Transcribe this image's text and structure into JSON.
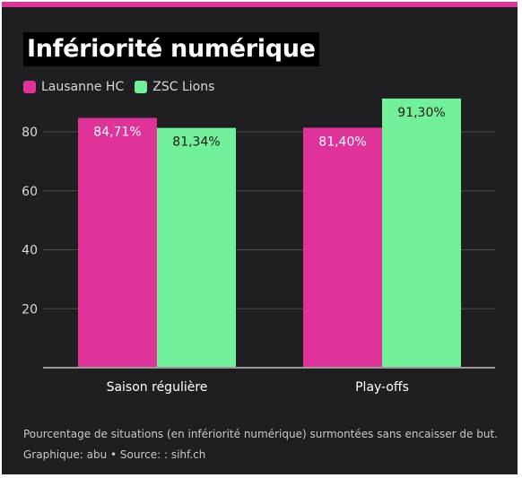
{
  "colors": {
    "series_1": "#e0339a",
    "series_2": "#72f09a",
    "background": "#1f1f21",
    "accent_bar": "#e0339a"
  },
  "header": {
    "title": "Infériorité numérique"
  },
  "chart_data": {
    "type": "bar",
    "categories": [
      "Saison régulière",
      "Play-offs"
    ],
    "series": [
      {
        "name": "Lausanne HC",
        "values": [
          84.71,
          81.4
        ],
        "labels": [
          "84,71%",
          "81,40%"
        ],
        "color": "#e0339a"
      },
      {
        "name": "ZSC Lions",
        "values": [
          81.34,
          91.3
        ],
        "labels": [
          "81,34%",
          "91,30%"
        ],
        "color": "#72f09a"
      }
    ],
    "yticks": [
      20,
      40,
      60,
      80
    ],
    "ylim": [
      0,
      100
    ],
    "grid": true,
    "legend": "top-left"
  },
  "footer": {
    "note": "Pourcentage de situations (en infériorité numérique) surmontées sans encaisser de but.",
    "credit": "Graphique: abu • Source: : sihf.ch"
  }
}
